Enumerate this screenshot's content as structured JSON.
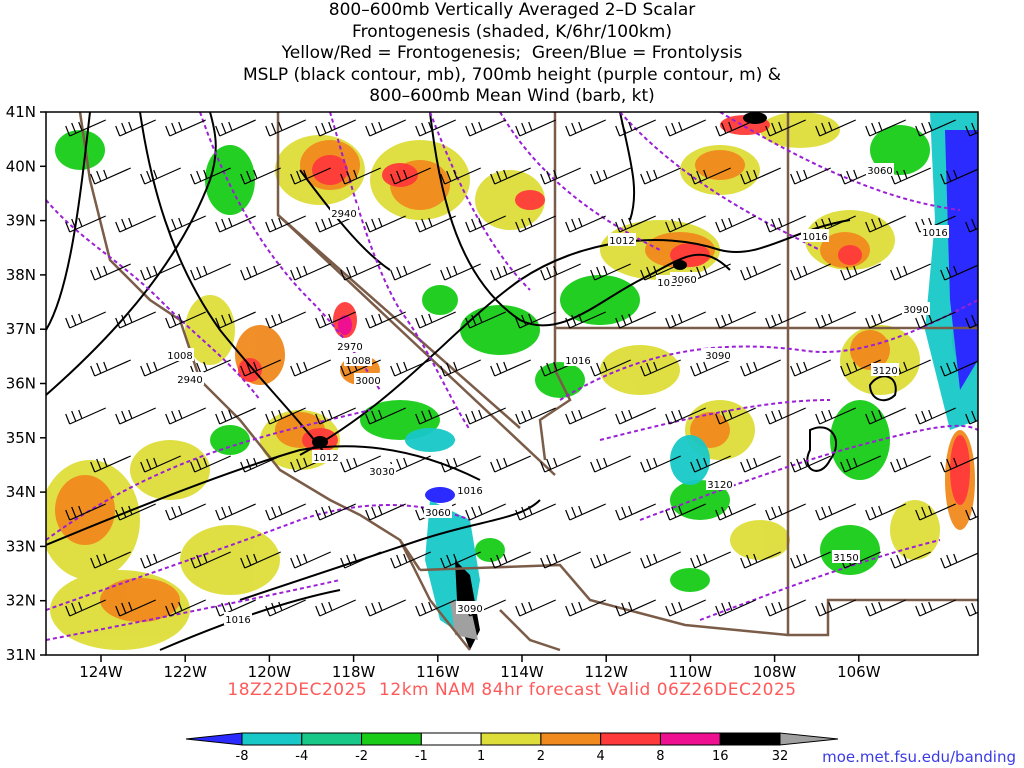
{
  "title_lines": [
    "800–600mb Vertically Averaged 2–D Scalar",
    "Frontogenesis (shaded, K/6hr/100km)",
    "Yellow/Red = Frontogenesis;  Green/Blue = Frontolysis",
    "MSLP (black contour, mb), 700mb height (purple contour, m) &",
    "800–600mb Mean Wind (barb, kt)"
  ],
  "subtitle": "18Z22DEC2025  12km NAM 84hr forecast Valid 06Z26DEC2025",
  "credit": "moe.met.fsu.edu/banding",
  "axes": {
    "lon_labels": [
      "124W",
      "122W",
      "120W",
      "118W",
      "116W",
      "114W",
      "112W",
      "110W",
      "108W",
      "106W"
    ],
    "lat_labels": [
      "41N",
      "40N",
      "39N",
      "38N",
      "37N",
      "36N",
      "35N",
      "34N",
      "33N",
      "32N",
      "31N"
    ]
  },
  "colorbar": {
    "labels": [
      "-8",
      "-4",
      "-2",
      "-1",
      "1",
      "2",
      "4",
      "8",
      "16",
      "32"
    ],
    "colors": [
      "#2b2bff",
      "#18c8c8",
      "#18c888",
      "#18cc18",
      "#ffffff",
      "#dede3a",
      "#f08a1e",
      "#ff3a3a",
      "#ee1090",
      "#000000",
      "#a0a0a0"
    ]
  },
  "mslp_labels": [
    "1016",
    "1012",
    "1012",
    "1008",
    "1008",
    "1012",
    "1016",
    "1016",
    "1016",
    "1016"
  ],
  "height_labels": [
    "2940",
    "2940",
    "2970",
    "3000",
    "3030",
    "3060",
    "3060",
    "3060",
    "3090",
    "3090",
    "3090",
    "3120",
    "3120",
    "3150"
  ],
  "colors": {
    "frontogenesis_yellow": "#dede3a",
    "frontogenesis_orange": "#f08a1e",
    "frontogenesis_red": "#ff3a3a",
    "frontogenesis_magenta": "#ee1090",
    "frontolysis_green": "#18cc18",
    "frontolysis_teal": "#18c888",
    "frontolysis_cyan": "#18c8c8",
    "frontolysis_blue": "#2b2bff",
    "mslp_contour": "#000000",
    "height_contour": "#9b1fd6",
    "border": "#7a5c48",
    "subtitle_color": "#ff5a5a",
    "credit_color": "#3a3ae6"
  }
}
